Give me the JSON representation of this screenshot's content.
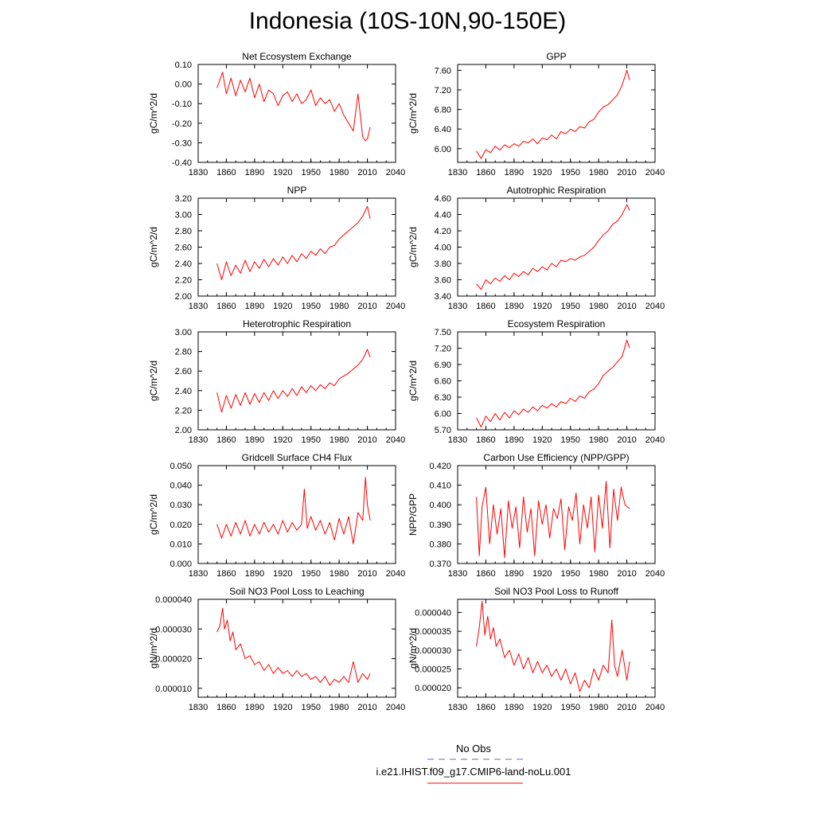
{
  "title": "Indonesia (10S-10N,90-150E)",
  "legend": {
    "obs_label": "No Obs",
    "obs_color": "#6666cc",
    "model_label": "i.e21.IHIST.f09_g17.CMIP6-land-noLu.001",
    "model_color": "#ff0000"
  },
  "line_color": "#ff0000",
  "chart_data": [
    {
      "type": "line",
      "title": "Net Ecosystem Exchange",
      "xlabel": "",
      "ylabel": "gC/m^2/d",
      "xlim": [
        1830,
        2040
      ],
      "ylim": [
        -0.4,
        0.1
      ],
      "xticks": [
        "1830",
        "1860",
        "1890",
        "1920",
        "1950",
        "1980",
        "2010",
        "2040"
      ],
      "yticks": [
        "-0.40",
        "-0.30",
        "-0.20",
        "-0.10",
        "0.00",
        "0.10"
      ],
      "series": [
        {
          "x": [
            1850,
            1856,
            1860,
            1865,
            1870,
            1875,
            1880,
            1885,
            1890,
            1895,
            1900,
            1905,
            1910,
            1915,
            1920,
            1925,
            1930,
            1935,
            1940,
            1945,
            1950,
            1955,
            1960,
            1965,
            1970,
            1975,
            1980,
            1985,
            1990,
            1995,
            2000,
            2005,
            2008,
            2010,
            2013
          ],
          "y": [
            -0.02,
            0.06,
            -0.05,
            0.03,
            -0.06,
            0.02,
            -0.04,
            0.03,
            -0.07,
            0.0,
            -0.09,
            -0.03,
            -0.05,
            -0.11,
            -0.06,
            -0.04,
            -0.09,
            -0.05,
            -0.1,
            -0.08,
            -0.03,
            -0.11,
            -0.07,
            -0.1,
            -0.08,
            -0.14,
            -0.1,
            -0.16,
            -0.2,
            -0.24,
            -0.05,
            -0.27,
            -0.29,
            -0.28,
            -0.22
          ]
        }
      ]
    },
    {
      "type": "line",
      "title": "GPP",
      "xlabel": "",
      "ylabel": "gC/m^2/d",
      "xlim": [
        1830,
        2040
      ],
      "ylim": [
        5.72,
        7.72
      ],
      "xticks": [
        "1830",
        "1860",
        "1890",
        "1920",
        "1950",
        "1980",
        "2010",
        "2040"
      ],
      "yticks": [
        "6.00",
        "6.40",
        "6.80",
        "7.20",
        "7.60"
      ],
      "series": [
        {
          "x": [
            1850,
            1855,
            1860,
            1865,
            1870,
            1875,
            1880,
            1885,
            1890,
            1895,
            1900,
            1905,
            1910,
            1915,
            1920,
            1925,
            1930,
            1935,
            1940,
            1945,
            1950,
            1955,
            1960,
            1965,
            1970,
            1975,
            1980,
            1985,
            1990,
            1995,
            2000,
            2005,
            2010,
            2013
          ],
          "y": [
            5.95,
            5.8,
            5.98,
            5.92,
            6.05,
            5.97,
            6.08,
            6.02,
            6.1,
            6.05,
            6.15,
            6.12,
            6.2,
            6.1,
            6.22,
            6.18,
            6.28,
            6.2,
            6.35,
            6.3,
            6.4,
            6.35,
            6.45,
            6.42,
            6.55,
            6.6,
            6.75,
            6.85,
            6.9,
            7.0,
            7.1,
            7.3,
            7.6,
            7.4
          ]
        }
      ]
    },
    {
      "type": "line",
      "title": "NPP",
      "xlabel": "",
      "ylabel": "gC/m^2/d",
      "xlim": [
        1830,
        2040
      ],
      "ylim": [
        2.0,
        3.2
      ],
      "xticks": [
        "1830",
        "1860",
        "1890",
        "1920",
        "1950",
        "1980",
        "2010",
        "2040"
      ],
      "yticks": [
        "2.00",
        "2.20",
        "2.40",
        "2.60",
        "2.80",
        "3.00",
        "3.20"
      ],
      "series": [
        {
          "x": [
            1850,
            1855,
            1860,
            1865,
            1870,
            1875,
            1880,
            1885,
            1890,
            1895,
            1900,
            1905,
            1910,
            1915,
            1920,
            1925,
            1930,
            1935,
            1940,
            1945,
            1950,
            1955,
            1960,
            1965,
            1970,
            1975,
            1980,
            1985,
            1990,
            1995,
            2000,
            2005,
            2010,
            2013
          ],
          "y": [
            2.4,
            2.2,
            2.42,
            2.25,
            2.38,
            2.28,
            2.44,
            2.3,
            2.42,
            2.34,
            2.45,
            2.36,
            2.46,
            2.38,
            2.48,
            2.4,
            2.5,
            2.42,
            2.52,
            2.46,
            2.55,
            2.5,
            2.58,
            2.52,
            2.6,
            2.62,
            2.7,
            2.75,
            2.8,
            2.85,
            2.9,
            2.98,
            3.1,
            2.95
          ]
        }
      ]
    },
    {
      "type": "line",
      "title": "Autotrophic Respiration",
      "xlabel": "",
      "ylabel": "gC/m^2/d",
      "xlim": [
        1830,
        2040
      ],
      "ylim": [
        3.4,
        4.6
      ],
      "xticks": [
        "1830",
        "1860",
        "1890",
        "1920",
        "1950",
        "1980",
        "2010",
        "2040"
      ],
      "yticks": [
        "3.40",
        "3.60",
        "3.80",
        "4.00",
        "4.20",
        "4.40",
        "4.60"
      ],
      "series": [
        {
          "x": [
            1850,
            1855,
            1860,
            1865,
            1870,
            1875,
            1880,
            1885,
            1890,
            1895,
            1900,
            1905,
            1910,
            1915,
            1920,
            1925,
            1930,
            1935,
            1940,
            1945,
            1950,
            1955,
            1960,
            1965,
            1970,
            1975,
            1980,
            1985,
            1990,
            1995,
            2000,
            2005,
            2010,
            2013
          ],
          "y": [
            3.55,
            3.48,
            3.6,
            3.55,
            3.62,
            3.58,
            3.65,
            3.6,
            3.68,
            3.64,
            3.7,
            3.66,
            3.74,
            3.7,
            3.76,
            3.72,
            3.8,
            3.76,
            3.84,
            3.82,
            3.86,
            3.84,
            3.88,
            3.9,
            3.95,
            4.0,
            4.08,
            4.15,
            4.2,
            4.28,
            4.32,
            4.4,
            4.52,
            4.45
          ]
        }
      ]
    },
    {
      "type": "line",
      "title": "Heterotrophic Respiration",
      "xlabel": "",
      "ylabel": "gC/m^2/d",
      "xlim": [
        1830,
        2040
      ],
      "ylim": [
        2.0,
        3.0
      ],
      "xticks": [
        "1830",
        "1860",
        "1890",
        "1920",
        "1950",
        "1980",
        "2010",
        "2040"
      ],
      "yticks": [
        "2.00",
        "2.20",
        "2.40",
        "2.60",
        "2.80",
        "3.00"
      ],
      "series": [
        {
          "x": [
            1850,
            1855,
            1860,
            1865,
            1870,
            1875,
            1880,
            1885,
            1890,
            1895,
            1900,
            1905,
            1910,
            1915,
            1920,
            1925,
            1930,
            1935,
            1940,
            1945,
            1950,
            1955,
            1960,
            1965,
            1970,
            1975,
            1980,
            1985,
            1990,
            1995,
            2000,
            2005,
            2010,
            2013
          ],
          "y": [
            2.38,
            2.18,
            2.35,
            2.22,
            2.36,
            2.25,
            2.38,
            2.26,
            2.37,
            2.28,
            2.38,
            2.3,
            2.4,
            2.32,
            2.4,
            2.34,
            2.42,
            2.35,
            2.44,
            2.38,
            2.45,
            2.4,
            2.46,
            2.42,
            2.48,
            2.45,
            2.52,
            2.55,
            2.58,
            2.62,
            2.66,
            2.72,
            2.82,
            2.74
          ]
        }
      ]
    },
    {
      "type": "line",
      "title": "Ecosystem Respiration",
      "xlabel": "",
      "ylabel": "gC/m^2/d",
      "xlim": [
        1830,
        2040
      ],
      "ylim": [
        5.7,
        7.5
      ],
      "xticks": [
        "1830",
        "1860",
        "1890",
        "1920",
        "1950",
        "1980",
        "2010",
        "2040"
      ],
      "yticks": [
        "5.70",
        "6.00",
        "6.30",
        "6.60",
        "6.90",
        "7.20",
        "7.50"
      ],
      "series": [
        {
          "x": [
            1850,
            1855,
            1860,
            1865,
            1870,
            1875,
            1880,
            1885,
            1890,
            1895,
            1900,
            1905,
            1910,
            1915,
            1920,
            1925,
            1930,
            1935,
            1940,
            1945,
            1950,
            1955,
            1960,
            1965,
            1970,
            1975,
            1980,
            1985,
            1990,
            1995,
            2000,
            2005,
            2010,
            2013
          ],
          "y": [
            5.92,
            5.75,
            5.95,
            5.85,
            6.0,
            5.88,
            6.02,
            5.92,
            6.05,
            5.98,
            6.08,
            6.02,
            6.12,
            6.05,
            6.15,
            6.1,
            6.18,
            6.12,
            6.22,
            6.18,
            6.28,
            6.22,
            6.32,
            6.28,
            6.4,
            6.45,
            6.55,
            6.7,
            6.78,
            6.85,
            6.95,
            7.05,
            7.35,
            7.2
          ]
        }
      ]
    },
    {
      "type": "line",
      "title": "Gridcell Surface CH4 Flux",
      "xlabel": "",
      "ylabel": "gC/m^2/d",
      "xlim": [
        1830,
        2040
      ],
      "ylim": [
        0.0,
        0.05
      ],
      "xticks": [
        "1830",
        "1860",
        "1890",
        "1920",
        "1950",
        "1980",
        "2010",
        "2040"
      ],
      "yticks": [
        "0.000",
        "0.010",
        "0.020",
        "0.030",
        "0.040",
        "0.050"
      ],
      "series": [
        {
          "x": [
            1850,
            1855,
            1860,
            1865,
            1870,
            1875,
            1880,
            1885,
            1890,
            1895,
            1900,
            1905,
            1910,
            1915,
            1920,
            1925,
            1930,
            1935,
            1940,
            1943,
            1946,
            1950,
            1955,
            1960,
            1965,
            1970,
            1975,
            1980,
            1985,
            1990,
            1995,
            2000,
            2005,
            2008,
            2010,
            2013
          ],
          "y": [
            0.02,
            0.013,
            0.02,
            0.014,
            0.021,
            0.015,
            0.022,
            0.014,
            0.02,
            0.015,
            0.021,
            0.016,
            0.02,
            0.015,
            0.022,
            0.016,
            0.021,
            0.017,
            0.02,
            0.038,
            0.018,
            0.024,
            0.017,
            0.022,
            0.015,
            0.021,
            0.012,
            0.023,
            0.015,
            0.024,
            0.01,
            0.026,
            0.022,
            0.044,
            0.03,
            0.022
          ]
        }
      ]
    },
    {
      "type": "line",
      "title": "Carbon Use Efficiency (NPP/GPP)",
      "xlabel": "",
      "ylabel": "NPP/GPP",
      "xlim": [
        1830,
        2040
      ],
      "ylim": [
        0.37,
        0.42
      ],
      "xticks": [
        "1830",
        "1860",
        "1890",
        "1920",
        "1950",
        "1980",
        "2010",
        "2040"
      ],
      "yticks": [
        "0.370",
        "0.380",
        "0.390",
        "0.400",
        "0.410",
        "0.420"
      ],
      "series": [
        {
          "x": [
            1850,
            1853,
            1856,
            1860,
            1864,
            1868,
            1872,
            1876,
            1880,
            1884,
            1888,
            1892,
            1896,
            1900,
            1904,
            1908,
            1912,
            1916,
            1920,
            1924,
            1928,
            1932,
            1936,
            1940,
            1944,
            1948,
            1952,
            1956,
            1960,
            1964,
            1968,
            1972,
            1976,
            1980,
            1984,
            1988,
            1992,
            1996,
            2000,
            2004,
            2008,
            2013
          ],
          "y": [
            0.404,
            0.374,
            0.399,
            0.409,
            0.38,
            0.4,
            0.385,
            0.398,
            0.373,
            0.402,
            0.388,
            0.399,
            0.378,
            0.404,
            0.386,
            0.398,
            0.374,
            0.402,
            0.39,
            0.4,
            0.383,
            0.398,
            0.393,
            0.403,
            0.377,
            0.399,
            0.392,
            0.406,
            0.38,
            0.4,
            0.388,
            0.404,
            0.376,
            0.405,
            0.388,
            0.412,
            0.378,
            0.408,
            0.392,
            0.409,
            0.4,
            0.398
          ]
        }
      ]
    },
    {
      "type": "line",
      "title": "Soil NO3 Pool Loss to Leaching",
      "xlabel": "",
      "ylabel": "gN/m^2/d",
      "xlim": [
        1830,
        2040
      ],
      "ylim": [
        7e-06,
        4e-05
      ],
      "xticks": [
        "1830",
        "1860",
        "1890",
        "1920",
        "1950",
        "1980",
        "2010",
        "2040"
      ],
      "yticks": [
        "0.000010",
        "0.000020",
        "0.000030",
        "0.000040"
      ],
      "series": [
        {
          "x": [
            1850,
            1853,
            1856,
            1858,
            1861,
            1864,
            1867,
            1870,
            1875,
            1880,
            1885,
            1890,
            1895,
            1900,
            1905,
            1910,
            1915,
            1920,
            1925,
            1930,
            1935,
            1940,
            1945,
            1950,
            1955,
            1960,
            1965,
            1970,
            1975,
            1980,
            1985,
            1990,
            1995,
            2000,
            2005,
            2010,
            2013
          ],
          "y": [
            2.9e-05,
            3.1e-05,
            3.7e-05,
            3e-05,
            3.3e-05,
            2.6e-05,
            2.9e-05,
            2.3e-05,
            2.5e-05,
            2e-05,
            2.1e-05,
            1.8e-05,
            1.9e-05,
            1.6e-05,
            1.8e-05,
            1.5e-05,
            1.7e-05,
            1.5e-05,
            1.6e-05,
            1.4e-05,
            1.6e-05,
            1.4e-05,
            1.5e-05,
            1.3e-05,
            1.4e-05,
            1.2e-05,
            1.4e-05,
            1.1e-05,
            1.3e-05,
            1.2e-05,
            1.4e-05,
            1.2e-05,
            1.9e-05,
            1.2e-05,
            1.5e-05,
            1.3e-05,
            1.5e-05
          ]
        }
      ]
    },
    {
      "type": "line",
      "title": "Soil NO3 Pool Loss to Runoff",
      "xlabel": "",
      "ylabel": "gN/m^2/d",
      "xlim": [
        1830,
        2040
      ],
      "ylim": [
        1.75e-05,
        4.35e-05
      ],
      "xticks": [
        "1830",
        "1860",
        "1890",
        "1920",
        "1950",
        "1980",
        "2010",
        "2040"
      ],
      "yticks": [
        "0.000020",
        "0.000025",
        "0.000030",
        "0.000035",
        "0.000040"
      ],
      "series": [
        {
          "x": [
            1850,
            1853,
            1856,
            1859,
            1862,
            1865,
            1868,
            1871,
            1875,
            1880,
            1885,
            1890,
            1895,
            1900,
            1905,
            1910,
            1915,
            1920,
            1925,
            1930,
            1935,
            1940,
            1945,
            1950,
            1955,
            1960,
            1965,
            1970,
            1975,
            1980,
            1985,
            1990,
            1994,
            1997,
            2000,
            2005,
            2010,
            2013
          ],
          "y": [
            3.1e-05,
            3.6e-05,
            4.3e-05,
            3.4e-05,
            3.9e-05,
            3.3e-05,
            3.6e-05,
            3.1e-05,
            3.3e-05,
            2.8e-05,
            3e-05,
            2.6e-05,
            2.9e-05,
            2.5e-05,
            2.8e-05,
            2.4e-05,
            2.7e-05,
            2.4e-05,
            2.6e-05,
            2.3e-05,
            2.5e-05,
            2.2e-05,
            2.5e-05,
            2.1e-05,
            2.4e-05,
            1.9e-05,
            2.2e-05,
            2e-05,
            2.5e-05,
            2.2e-05,
            2.6e-05,
            2.4e-05,
            3.8e-05,
            2.6e-05,
            2.3e-05,
            3e-05,
            2.2e-05,
            2.7e-05
          ]
        }
      ]
    }
  ]
}
